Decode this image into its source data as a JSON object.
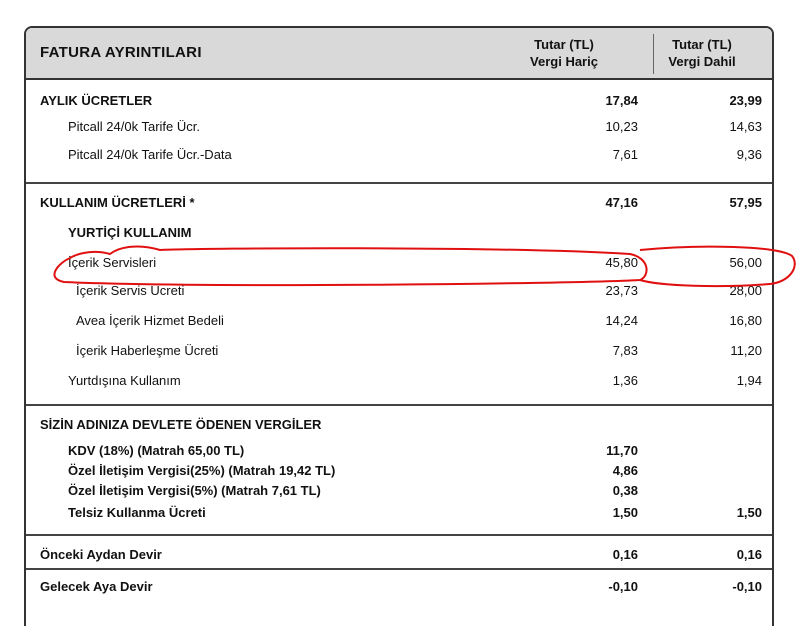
{
  "header": {
    "title": "FATURA AYRINTILARI",
    "col1_line1": "Tutar (TL)",
    "col1_line2": "Vergi Hariç",
    "col2_line1": "Tutar (TL)",
    "col2_line2": "Vergi Dahil"
  },
  "monthly": {
    "title": {
      "label": "AYLIK ÜCRETLER",
      "v1": "17,84",
      "v2": "23,99"
    },
    "items": [
      {
        "label": "Pitcall 24/0k Tarife Ücr.",
        "v1": "10,23",
        "v2": "14,63"
      },
      {
        "label": "Pitcall 24/0k Tarife Ücr.-Data",
        "v1": "7,61",
        "v2": "9,36"
      }
    ]
  },
  "usage": {
    "title": {
      "label": "KULLANIM ÜCRETLERİ *",
      "v1": "47,16",
      "v2": "57,95"
    },
    "subtitle": "YURTİÇİ KULLANIM",
    "items": [
      {
        "label": "İçerik Servisleri",
        "v1": "45,80",
        "v2": "56,00"
      },
      {
        "label": "İçerik Servis Ücreti",
        "v1": "23,73",
        "v2": "28,00"
      },
      {
        "label": "Avea İçerik Hizmet Bedeli",
        "v1": "14,24",
        "v2": "16,80"
      },
      {
        "label": "İçerik Haberleşme Ücreti",
        "v1": "7,83",
        "v2": "11,20"
      },
      {
        "label": "Yurtdışına Kullanım",
        "v1": "1,36",
        "v2": "1,94"
      }
    ]
  },
  "taxes": {
    "title": "SİZİN ADINIZA DEVLETE ÖDENEN VERGİLER",
    "items": [
      {
        "label": "KDV (18%) (Matrah 65,00 TL)",
        "v1": "11,70",
        "v2": ""
      },
      {
        "label": "Özel İletişim Vergisi(25%) (Matrah 19,42 TL)",
        "v1": "4,86",
        "v2": ""
      },
      {
        "label": "Özel İletişim Vergisi(5%) (Matrah 7,61 TL)",
        "v1": "0,38",
        "v2": ""
      },
      {
        "label": "Telsiz Kullanma Ücreti",
        "v1": "1,50",
        "v2": "1,50"
      }
    ]
  },
  "carry": {
    "items": [
      {
        "label": "Önceki Aydan Devir",
        "v1": "0,16",
        "v2": "0,16"
      },
      {
        "label": "Gelecek Aya Devir",
        "v1": "-0,10",
        "v2": "-0,10"
      }
    ]
  },
  "annotation_color": "#e01010"
}
